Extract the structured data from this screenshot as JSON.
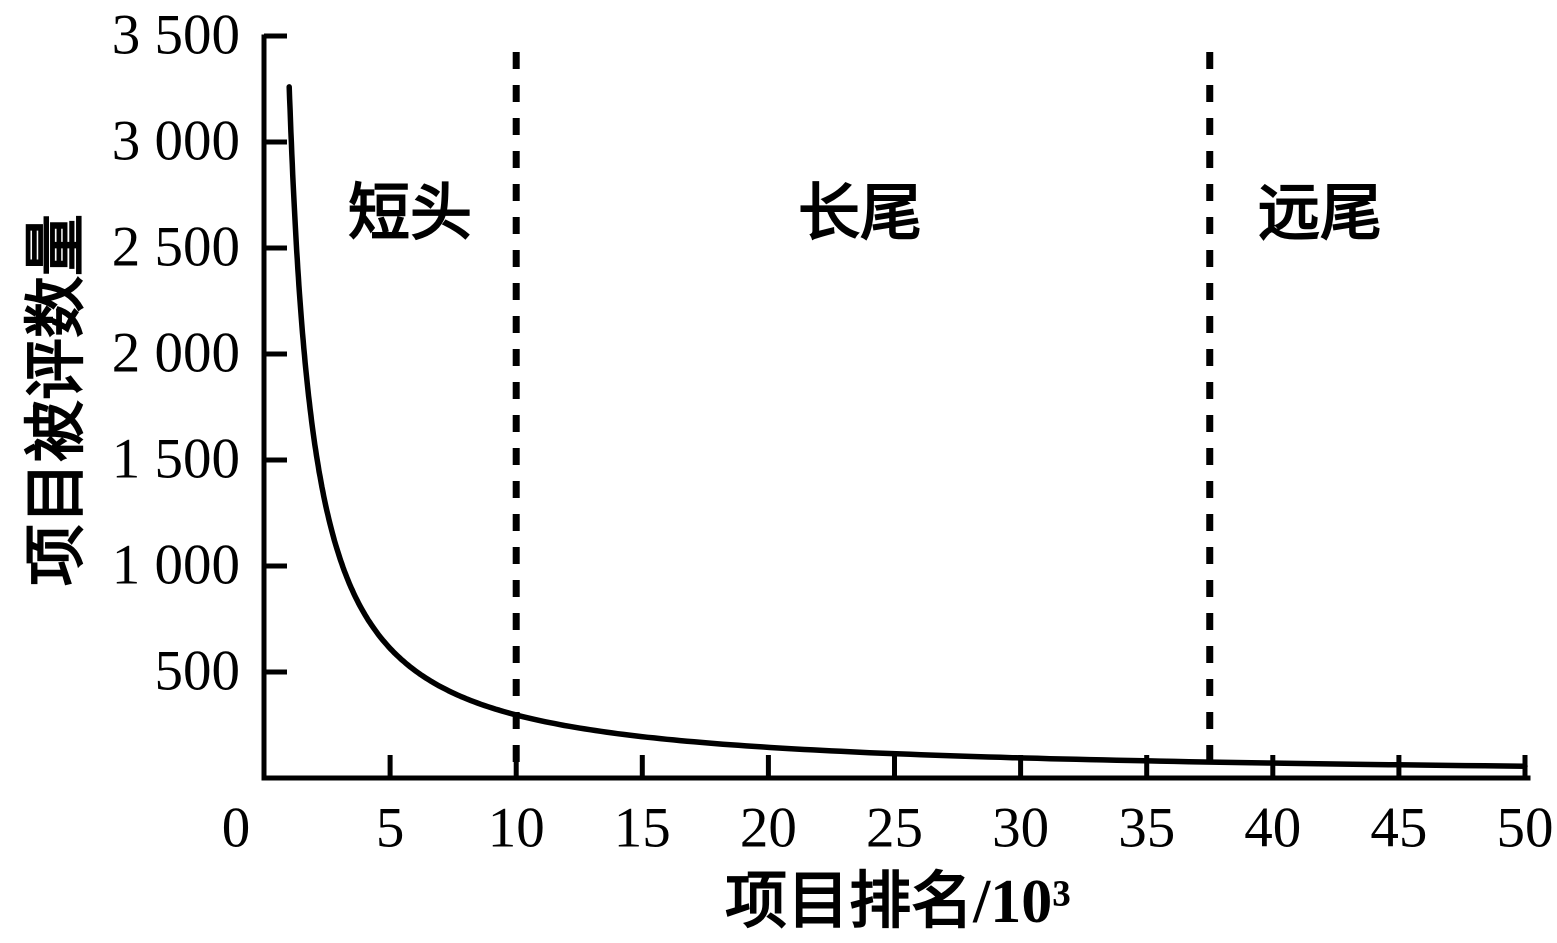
{
  "figure": {
    "background_color": "#ffffff",
    "ink_color": "#000000"
  },
  "chart_data": {
    "type": "line",
    "title": "",
    "xlabel": "项目排名/10³",
    "ylabel": "项目被评数量",
    "xlim": [
      0,
      50
    ],
    "ylim": [
      0,
      3500
    ],
    "grid": false,
    "legend": null,
    "x_ticks": [
      0,
      5,
      10,
      15,
      20,
      25,
      30,
      35,
      40,
      45,
      50
    ],
    "x_tick_labels": [
      "0",
      "5",
      "10",
      "15",
      "20",
      "25",
      "30",
      "35",
      "40",
      "45",
      "50"
    ],
    "y_ticks": [
      500,
      1000,
      1500,
      2000,
      2500,
      3000,
      3500
    ],
    "y_tick_labels": [
      "500",
      "1 000",
      "1 500",
      "2 000",
      "2 500",
      "3 000",
      "3 500"
    ],
    "series": [
      {
        "line_style": "solid",
        "color": "#000000",
        "power_law": {
          "coefficient": 3260,
          "exponent": -1.04,
          "x_start": 1,
          "x_end": 50
        },
        "x": [
          1,
          1.1,
          1.25,
          1.4,
          1.6,
          1.8,
          2,
          2.25,
          2.5,
          2.75,
          3,
          3.5,
          4,
          4.5,
          5,
          6,
          7,
          8,
          9,
          10,
          12,
          14,
          17,
          20,
          24,
          28,
          32,
          36,
          40,
          45,
          50
        ],
        "y": [
          3260,
          2952,
          2585,
          2297,
          2000,
          1769,
          1585,
          1403,
          1257,
          1138,
          1040,
          886,
          771,
          682,
          611,
          506,
          431,
          375,
          332,
          297,
          246,
          210,
          171,
          145,
          120,
          102,
          89,
          78,
          70,
          62,
          56
        ]
      }
    ],
    "region_dividers_x": [
      10,
      37.5
    ],
    "divider_line_style": "dashed",
    "regions": [
      {
        "label": "短头",
        "x_range": [
          0,
          10
        ]
      },
      {
        "label": "长尾",
        "x_range": [
          10,
          37.5
        ]
      },
      {
        "label": "远尾",
        "x_range": [
          37.5,
          50
        ]
      }
    ]
  }
}
